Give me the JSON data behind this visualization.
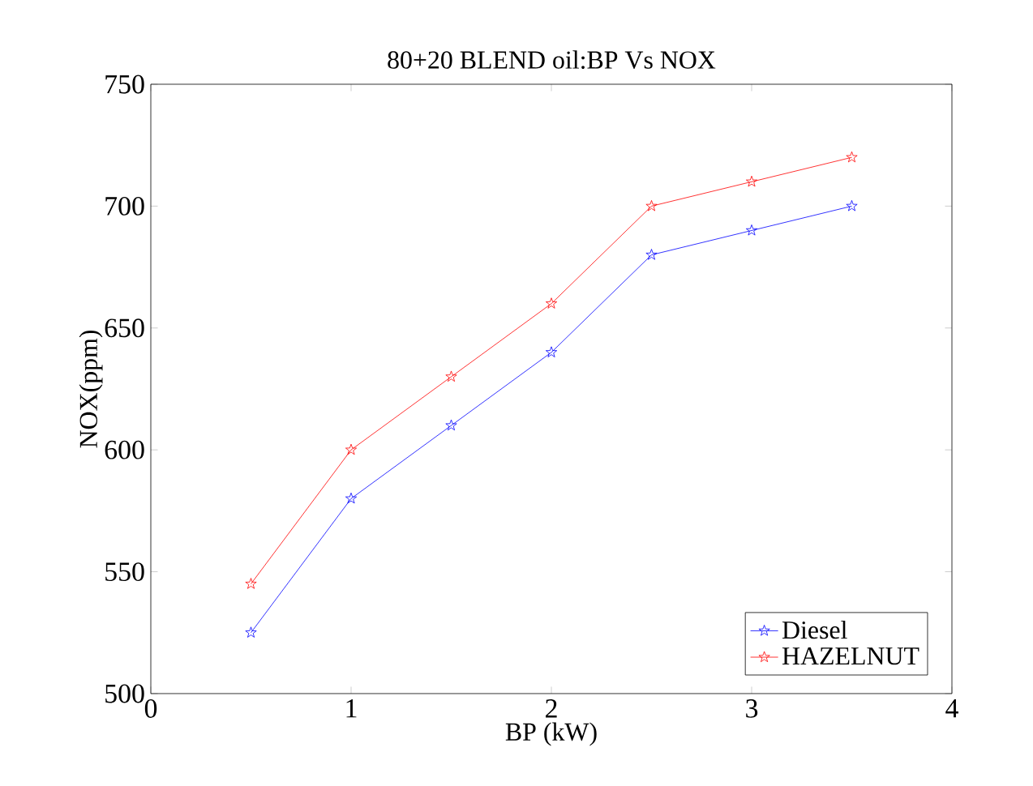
{
  "chart_data": {
    "type": "line",
    "title": "80+20 BLEND oil:BP Vs NOX",
    "xlabel": "BP (kW)",
    "ylabel": "NOX(ppm)",
    "x": [
      0.5,
      1,
      1.5,
      2,
      2.5,
      3,
      3.5
    ],
    "series": [
      {
        "name": "Diesel",
        "color": "#0000ff",
        "values": [
          525,
          580,
          610,
          640,
          680,
          690,
          700
        ]
      },
      {
        "name": "HAZELNUT",
        "color": "#ff0000",
        "values": [
          545,
          600,
          630,
          660,
          700,
          710,
          720
        ]
      }
    ],
    "xlim": [
      0,
      4
    ],
    "ylim": [
      500,
      750
    ],
    "xticks": [
      0,
      1,
      2,
      3,
      4
    ],
    "yticks": [
      500,
      550,
      600,
      650,
      700,
      750
    ],
    "grid": false,
    "legend": "bottom right",
    "marker": "star",
    "line_style": "solid"
  }
}
